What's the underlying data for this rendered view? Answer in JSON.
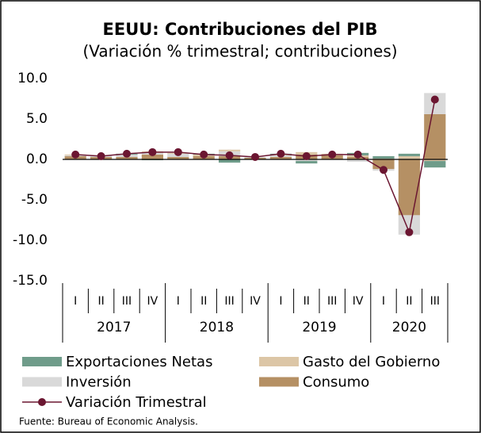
{
  "chart_data": {
    "type": "bar",
    "stacked": true,
    "title": "EEUU: Contribuciones del PIB",
    "subtitle": "(Variación % trimestral; contribuciones)",
    "source": "Fuente:  Bureau of Economic Analysis.",
    "categories": [
      "I",
      "II",
      "III",
      "IV",
      "I",
      "II",
      "III",
      "IV",
      "I",
      "II",
      "III",
      "IV",
      "I",
      "II",
      "III"
    ],
    "years": [
      "2017",
      "2018",
      "2019",
      "2020"
    ],
    "series": [
      {
        "name": "Exportaciones Netas",
        "color": "#6f9c8a",
        "values": [
          0.0,
          0.0,
          0.1,
          -0.1,
          0.0,
          0.1,
          -0.4,
          0.0,
          0.1,
          -0.3,
          0.0,
          0.3,
          0.3,
          0.3,
          -0.8
        ]
      },
      {
        "name": "Gasto del Gobierno",
        "color": "#dcc6a6",
        "values": [
          0.1,
          0.0,
          0.0,
          0.2,
          0.1,
          0.2,
          0.2,
          0.0,
          0.1,
          0.3,
          0.2,
          0.2,
          0.1,
          0.4,
          -0.2
        ]
      },
      {
        "name": "Inversión",
        "color": "#d9d9d9",
        "values": [
          0.1,
          0.2,
          0.3,
          0.2,
          0.4,
          0.0,
          0.6,
          0.1,
          0.2,
          -0.2,
          0.0,
          -0.3,
          -0.2,
          -2.4,
          2.6
        ]
      },
      {
        "name": "Consumo",
        "color": "#b59064",
        "values": [
          0.4,
          0.3,
          0.3,
          0.6,
          0.3,
          0.4,
          0.4,
          0.2,
          0.3,
          0.6,
          0.5,
          0.3,
          -1.2,
          -6.9,
          5.6
        ]
      },
      {
        "name": "Variación Trimestral",
        "type": "line",
        "color": "#6b1631",
        "values": [
          0.6,
          0.4,
          0.7,
          0.9,
          0.9,
          0.6,
          0.5,
          0.3,
          0.7,
          0.4,
          0.6,
          0.6,
          -1.3,
          -9.0,
          7.4
        ]
      }
    ],
    "ylim": [
      -15,
      10
    ],
    "yticks": [
      {
        "value": -15,
        "label": "-15.0"
      },
      {
        "value": -10,
        "label": "-10.0"
      },
      {
        "value": -5,
        "label": "-5.0"
      },
      {
        "value": 0,
        "label": "0.0"
      },
      {
        "value": 5,
        "label": "5.0"
      },
      {
        "value": 10,
        "label": "10.0"
      }
    ],
    "grid": false
  }
}
